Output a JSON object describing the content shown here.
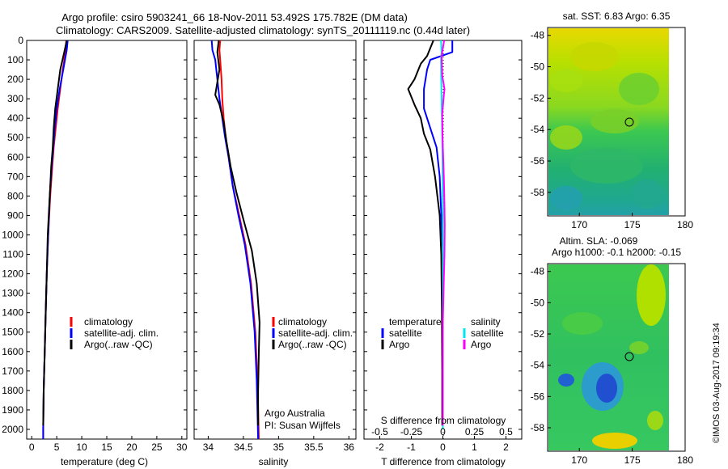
{
  "header": {
    "line1": "Argo profile: csiro 5903241_66 18-Nov-2011 53.492S 175.782E (DM data)",
    "line2": "Climatology: CARS2009. Satellite-adjusted climatology: synTS_20111119.nc (0.44d later)"
  },
  "colors": {
    "climatology": "#ff0000",
    "satellite": "#0000ff",
    "argo": "#000000",
    "satellite_salinity": "#00e5ee",
    "argo_salinity": "#ff00ff"
  },
  "chart_data": [
    {
      "type": "line",
      "xlabel": "temperature (deg C)",
      "ylabel": "",
      "xlim": [
        -1,
        31
      ],
      "ylim": [
        2050,
        0
      ],
      "x_ticks": [
        "0",
        "5",
        "10",
        "15",
        "20",
        "25",
        "30"
      ],
      "y_ticks": [
        "0",
        "100",
        "200",
        "300",
        "400",
        "500",
        "600",
        "700",
        "800",
        "900",
        "1000",
        "1100",
        "1200",
        "1300",
        "1400",
        "1500",
        "1600",
        "1700",
        "1800",
        "1900",
        "2000"
      ],
      "legend": [
        "climatology",
        "satellite-adj. clim.",
        "Argo(..raw -QC)"
      ],
      "legend_position": "lower-middle",
      "series": [
        {
          "name": "climatology",
          "color": "red",
          "points": [
            [
              6.9,
              0
            ],
            [
              6.8,
              50
            ],
            [
              6.2,
              150
            ],
            [
              5.7,
              250
            ],
            [
              5.2,
              350
            ],
            [
              4.8,
              450
            ],
            [
              4.4,
              550
            ],
            [
              4.1,
              650
            ],
            [
              3.7,
              800
            ],
            [
              3.3,
              1000
            ],
            [
              3.0,
              1200
            ],
            [
              2.8,
              1400
            ],
            [
              2.6,
              1600
            ],
            [
              2.4,
              1800
            ],
            [
              2.3,
              2000
            ],
            [
              2.3,
              2050
            ]
          ]
        },
        {
          "name": "satellite-adj. clim.",
          "color": "blue",
          "points": [
            [
              7.2,
              0
            ],
            [
              7.0,
              50
            ],
            [
              6.3,
              150
            ],
            [
              5.6,
              250
            ],
            [
              5.0,
              350
            ],
            [
              4.6,
              450
            ],
            [
              4.3,
              550
            ],
            [
              4.0,
              650
            ],
            [
              3.6,
              800
            ],
            [
              3.3,
              1000
            ],
            [
              3.0,
              1200
            ],
            [
              2.8,
              1400
            ],
            [
              2.6,
              1600
            ],
            [
              2.4,
              1800
            ],
            [
              2.3,
              2000
            ],
            [
              2.3,
              2050
            ]
          ]
        },
        {
          "name": "Argo(..raw -QC)",
          "color": "black",
          "points": [
            [
              7.0,
              0
            ],
            [
              6.6,
              50
            ],
            [
              5.7,
              150
            ],
            [
              5.2,
              250
            ],
            [
              4.7,
              350
            ],
            [
              4.4,
              450
            ],
            [
              4.2,
              550
            ],
            [
              3.9,
              650
            ],
            [
              3.6,
              800
            ],
            [
              3.2,
              1000
            ],
            [
              3.0,
              1200
            ],
            [
              2.8,
              1400
            ],
            [
              2.6,
              1600
            ],
            [
              2.4,
              1800
            ],
            [
              2.3,
              1980
            ]
          ]
        }
      ]
    },
    {
      "type": "line",
      "xlabel": "salinity",
      "ylabel": "",
      "xlim": [
        33.8,
        36.1
      ],
      "ylim": [
        2050,
        0
      ],
      "x_ticks": [
        "34",
        "34.5",
        "35",
        "35.5",
        "36"
      ],
      "legend": [
        "climatology",
        "satellite-adj. clim.",
        "Argo(..raw -QC)"
      ],
      "legend_position": "lower-right",
      "annotations": [
        "Argo Australia",
        "PI: Susan Wijffels"
      ],
      "series": [
        {
          "name": "climatology",
          "color": "red",
          "points": [
            [
              34.17,
              0
            ],
            [
              34.16,
              50
            ],
            [
              34.17,
              100
            ],
            [
              34.19,
              200
            ],
            [
              34.2,
              300
            ],
            [
              34.22,
              400
            ],
            [
              34.25,
              500
            ],
            [
              34.29,
              600
            ],
            [
              34.35,
              750
            ],
            [
              34.44,
              900
            ],
            [
              34.53,
              1050
            ],
            [
              34.61,
              1250
            ],
            [
              34.67,
              1500
            ],
            [
              34.7,
              1750
            ],
            [
              34.72,
              2050
            ]
          ]
        },
        {
          "name": "satellite-adj. clim.",
          "color": "blue",
          "points": [
            [
              34.05,
              0
            ],
            [
              34.06,
              50
            ],
            [
              34.1,
              100
            ],
            [
              34.13,
              200
            ],
            [
              34.16,
              300
            ],
            [
              34.2,
              400
            ],
            [
              34.24,
              500
            ],
            [
              34.29,
              600
            ],
            [
              34.35,
              750
            ],
            [
              34.43,
              900
            ],
            [
              34.52,
              1050
            ],
            [
              34.6,
              1250
            ],
            [
              34.66,
              1500
            ],
            [
              34.69,
              1750
            ],
            [
              34.71,
              2050
            ]
          ]
        },
        {
          "name": "Argo(..raw -QC)",
          "color": "black",
          "points": [
            [
              34.15,
              0
            ],
            [
              34.13,
              60
            ],
            [
              34.16,
              150
            ],
            [
              34.1,
              280
            ],
            [
              34.16,
              330
            ],
            [
              34.22,
              420
            ],
            [
              34.26,
              520
            ],
            [
              34.32,
              650
            ],
            [
              34.4,
              780
            ],
            [
              34.5,
              920
            ],
            [
              34.62,
              1080
            ],
            [
              34.69,
              1250
            ],
            [
              34.73,
              1450
            ],
            [
              34.72,
              1600
            ],
            [
              34.71,
              1800
            ],
            [
              34.71,
              1980
            ]
          ]
        }
      ]
    },
    {
      "type": "line",
      "xlabel": "T difference from climatology",
      "ylabel": "",
      "xlim": [
        -2.5,
        2.5
      ],
      "ylim": [
        2050,
        0
      ],
      "x_ticks": [
        "-2",
        "-1",
        "0",
        "1",
        "2"
      ],
      "secondary_axis": {
        "label": "S difference from climatology",
        "ticks": [
          "-0.5",
          "-0.25",
          "0",
          "0.25",
          "0.5"
        ],
        "xlim": [
          -0.625,
          0.625
        ]
      },
      "legend": [
        "temperature",
        "satellite",
        "Argo",
        "salinity",
        "satellite",
        "Argo"
      ],
      "legend_position": "lower-middle",
      "series": [
        {
          "name": "satellite",
          "color": "blue",
          "points": [
            [
              0.3,
              0
            ],
            [
              0.3,
              60
            ],
            [
              -0.4,
              100
            ],
            [
              -0.5,
              150
            ],
            [
              -0.6,
              250
            ],
            [
              -0.6,
              350
            ],
            [
              -0.4,
              450
            ],
            [
              -0.2,
              550
            ],
            [
              -0.1,
              700
            ],
            [
              -0.05,
              900
            ],
            [
              0.0,
              1100
            ],
            [
              0.0,
              1400
            ],
            [
              0.0,
              1700
            ],
            [
              0.0,
              2000
            ]
          ]
        },
        {
          "name": "Argo",
          "color": "black",
          "points": [
            [
              -0.3,
              0
            ],
            [
              -0.5,
              80
            ],
            [
              -0.7,
              120
            ],
            [
              -0.9,
              200
            ],
            [
              -1.1,
              250
            ],
            [
              -0.9,
              330
            ],
            [
              -0.7,
              400
            ],
            [
              -0.6,
              480
            ],
            [
              -0.4,
              560
            ],
            [
              -0.25,
              700
            ],
            [
              -0.1,
              900
            ],
            [
              -0.05,
              1100
            ],
            [
              -0.03,
              1400
            ],
            [
              -0.02,
              1700
            ],
            [
              -0.02,
              1980
            ]
          ]
        },
        {
          "name": "satellite",
          "color": "cyan",
          "points": [
            [
              -0.06,
              0
            ],
            [
              -0.04,
              60
            ],
            [
              -0.06,
              100
            ],
            [
              -0.05,
              200
            ],
            [
              -0.04,
              300
            ],
            [
              -0.03,
              400
            ],
            [
              -0.02,
              500
            ],
            [
              -0.01,
              650
            ],
            [
              0,
              900
            ],
            [
              0,
              1200
            ],
            [
              0,
              1500
            ],
            [
              0,
              2000
            ]
          ]
        },
        {
          "name": "Argo",
          "color": "magenta",
          "points": [
            [
              0.04,
              0
            ],
            [
              -0.04,
              80
            ],
            [
              -0.02,
              180
            ],
            [
              0.05,
              250
            ],
            [
              0.02,
              300
            ],
            [
              -0.02,
              380
            ],
            [
              -0.01,
              500
            ],
            [
              0.01,
              600
            ],
            [
              0.03,
              700
            ],
            [
              0.05,
              850
            ],
            [
              0.06,
              950
            ],
            [
              0.05,
              1100
            ],
            [
              0.02,
              1300
            ],
            [
              0.0,
              1450
            ],
            [
              0.0,
              1700
            ],
            [
              0.0,
              1980
            ]
          ]
        }
      ]
    },
    {
      "type": "heatmap",
      "title": "sat. SST: 6.83  Argo: 6.35",
      "xlim": [
        167,
        180
      ],
      "ylim": [
        -59.5,
        -47.5
      ],
      "x_ticks": [
        "170",
        "175",
        "180"
      ],
      "y_ticks": [
        "-48",
        "-50",
        "-52",
        "-54",
        "-56",
        "-58"
      ],
      "marker": {
        "lon": 175.782,
        "lat": -53.492
      }
    },
    {
      "type": "heatmap",
      "title": "Altim. SLA: -0.069",
      "subtitle": "Argo h1000: -0.1 h2000: -0.15",
      "xlim": [
        167,
        180
      ],
      "ylim": [
        -59.5,
        -47.5
      ],
      "x_ticks": [
        "170",
        "175",
        "180"
      ],
      "y_ticks": [
        "-48",
        "-50",
        "-52",
        "-54",
        "-56",
        "-58"
      ],
      "marker": {
        "lon": 175.782,
        "lat": -53.492
      }
    }
  ],
  "footer": {
    "stamp": "©IMOS 03-Aug-2017 09:19:34"
  }
}
